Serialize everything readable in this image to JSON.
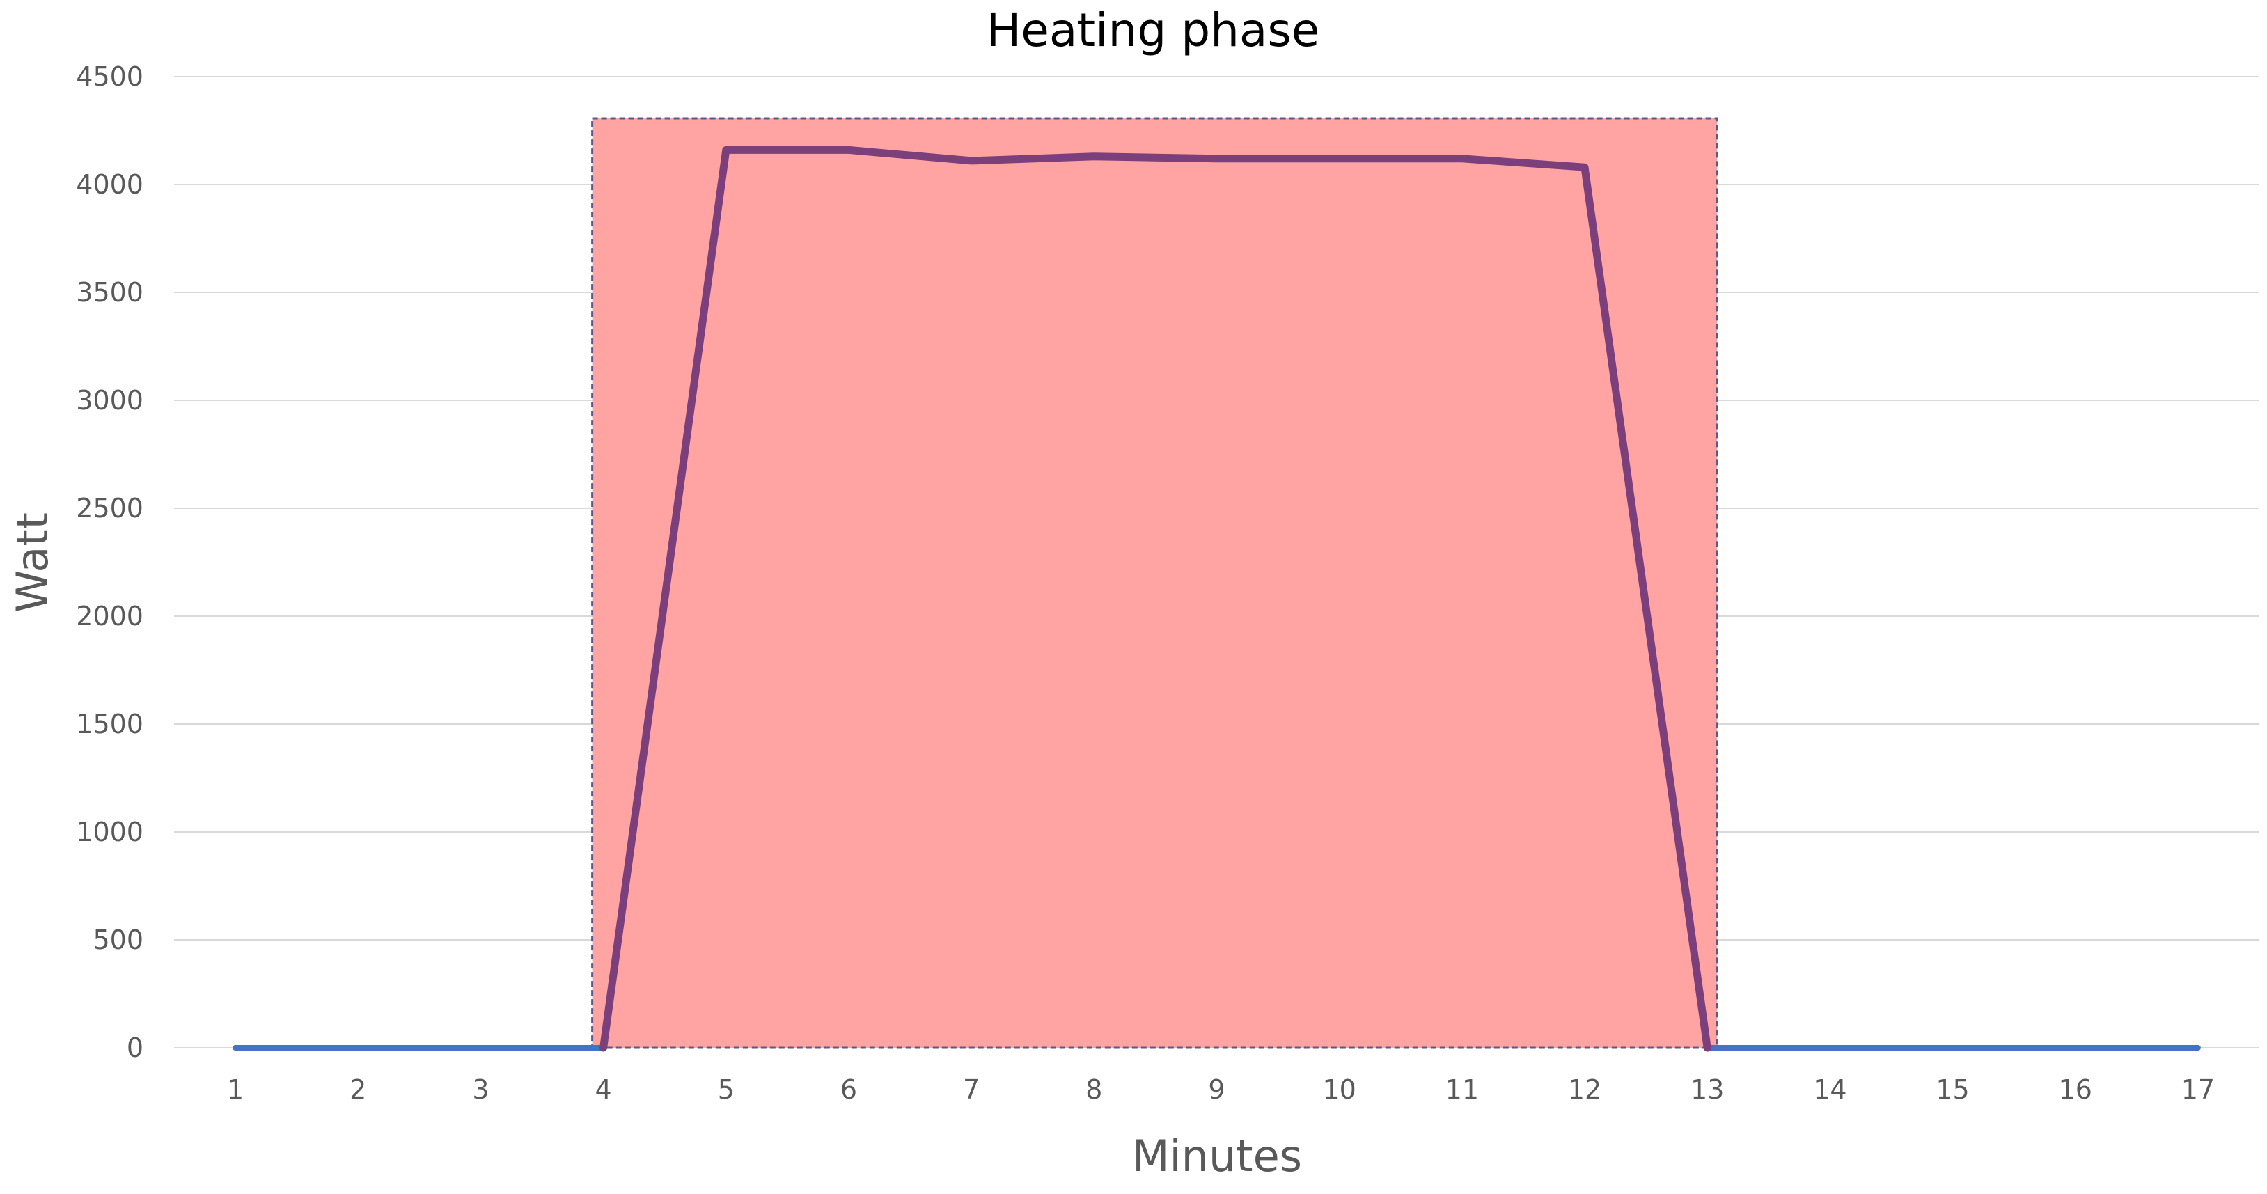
{
  "chart_data": {
    "type": "line",
    "title": "Heating phase",
    "xlabel": "Minutes",
    "ylabel": "Watt",
    "categories": [
      "1",
      "2",
      "3",
      "4",
      "5",
      "6",
      "7",
      "8",
      "9",
      "10",
      "11",
      "12",
      "13",
      "14",
      "15",
      "16",
      "17"
    ],
    "ylim": [
      0,
      4500
    ],
    "yticks": [
      0,
      500,
      1000,
      1500,
      2000,
      2500,
      3000,
      3500,
      4000,
      4500
    ],
    "grid": true,
    "legend": "none",
    "highlight_region": {
      "x_from": 4,
      "x_to": 13,
      "color": "#ffa3a3",
      "border_color": "#5a5a8a"
    },
    "series": [
      {
        "color": "#4472c4",
        "values": [
          0,
          0,
          0,
          0,
          null,
          null,
          null,
          null,
          null,
          null,
          null,
          null,
          0,
          0,
          0,
          0,
          0
        ]
      },
      {
        "color": "#7b3f7b",
        "values": [
          null,
          null,
          null,
          0,
          4160,
          4160,
          4110,
          4130,
          4120,
          4120,
          4120,
          4080,
          0,
          null,
          null,
          null,
          null
        ]
      }
    ]
  }
}
